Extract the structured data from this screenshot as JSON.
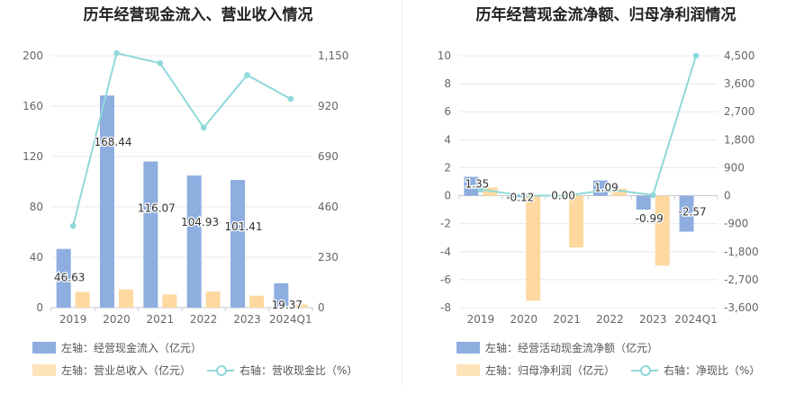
{
  "chart_data": [
    {
      "type": "bar",
      "title": "历年经营现金流入、营业收入情况",
      "categories": [
        "2019",
        "2020",
        "2021",
        "2022",
        "2023",
        "2024Q1"
      ],
      "left_axis": {
        "ticks": [
          0,
          40,
          80,
          120,
          160,
          200
        ],
        "tick_labels": [
          "0",
          "40",
          "80",
          "120",
          "160",
          "200"
        ],
        "ylim": [
          0,
          200
        ]
      },
      "right_axis": {
        "ticks": [
          0,
          230,
          460,
          690,
          920,
          1150
        ],
        "tick_labels": [
          "0",
          "230",
          "460",
          "690",
          "920",
          "1,150"
        ],
        "ylim": [
          0,
          1150
        ]
      },
      "series": [
        {
          "name": "左轴：经营现金流入（亿元）",
          "axis": "left",
          "kind": "bar",
          "color": "#8eaee0",
          "values": [
            46.63,
            168.44,
            116.07,
            104.93,
            101.41,
            19.37
          ],
          "labels": [
            "46.63",
            "168.44",
            "116.07",
            "104.93",
            "101.41",
            "19.37"
          ]
        },
        {
          "name": "左轴：营业总收入（亿元）",
          "axis": "left",
          "kind": "bar",
          "color": "#fdd9a0",
          "values": [
            12.5,
            14.5,
            10.5,
            12.8,
            9.5,
            2.5
          ]
        },
        {
          "name": "右轴：营收现金比（%）",
          "axis": "right",
          "kind": "line",
          "color": "#8fd8da",
          "values": [
            373,
            1162,
            1116,
            822,
            1062,
            953
          ]
        }
      ],
      "grid": true,
      "legend": "bottom-left"
    },
    {
      "type": "bar",
      "title": "历年经营现金流净额、归母净利润情况",
      "categories": [
        "2019",
        "2020",
        "2021",
        "2022",
        "2023",
        "2024Q1"
      ],
      "left_axis": {
        "ticks": [
          -8,
          -6,
          -4,
          -2,
          0,
          2,
          4,
          6,
          8,
          10
        ],
        "tick_labels": [
          "-8",
          "-6",
          "-4",
          "-2",
          "0",
          "2",
          "4",
          "6",
          "8",
          "10"
        ],
        "ylim": [
          -8,
          10
        ]
      },
      "right_axis": {
        "ticks": [
          -3600,
          -2700,
          -1800,
          -900,
          0,
          900,
          1800,
          2700,
          3600,
          4500
        ],
        "tick_labels": [
          "-3,600",
          "-2,700",
          "-1,800",
          "-900",
          "0",
          "900",
          "1,800",
          "2,700",
          "3,600",
          "4,500"
        ],
        "ylim": [
          -3600,
          4500
        ]
      },
      "series": [
        {
          "name": "左轴：经营活动现金流净额（亿元）",
          "axis": "left",
          "kind": "bar",
          "color": "#8eaee0",
          "values": [
            1.35,
            -0.12,
            0.0,
            1.09,
            -0.99,
            -2.57
          ],
          "labels": [
            "1.35",
            "-0.12",
            "0.00",
            "1.09",
            "-0.99",
            "-2.57"
          ]
        },
        {
          "name": "左轴：归母净利润（亿元）",
          "axis": "left",
          "kind": "bar",
          "color": "#fdd9a0",
          "values": [
            0.6,
            -7.5,
            -3.7,
            0.5,
            -5.0,
            0.0
          ]
        },
        {
          "name": "右轴：净现比（%）",
          "axis": "right",
          "kind": "line",
          "color": "#8fd8da",
          "values": [
            200,
            0,
            0,
            200,
            20,
            4500
          ]
        }
      ],
      "grid": true,
      "legend": "bottom-left"
    }
  ]
}
